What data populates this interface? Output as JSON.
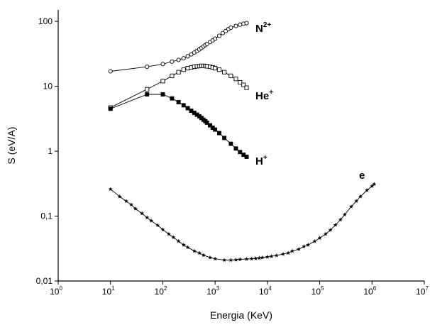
{
  "chart_data": {
    "type": "scatter",
    "xlabel": "Energia (KeV)",
    "ylabel": "S (eV/A)",
    "xscale": "log",
    "yscale": "log",
    "xlim": [
      1,
      10000000
    ],
    "ylim": [
      0.01,
      150
    ],
    "x_ticks": [
      {
        "base": "10",
        "exp": "0",
        "value": 1
      },
      {
        "base": "10",
        "exp": "1",
        "value": 10
      },
      {
        "base": "10",
        "exp": "2",
        "value": 100
      },
      {
        "base": "10",
        "exp": "3",
        "value": 1000
      },
      {
        "base": "10",
        "exp": "4",
        "value": 10000
      },
      {
        "base": "10",
        "exp": "5",
        "value": 100000
      },
      {
        "base": "10",
        "exp": "6",
        "value": 1000000
      },
      {
        "base": "10",
        "exp": "7",
        "value": 10000000
      }
    ],
    "y_ticks": [
      {
        "label": "0,01",
        "value": 0.01
      },
      {
        "label": "0,1",
        "value": 0.1
      },
      {
        "label": "1",
        "value": 1
      },
      {
        "label": "10",
        "value": 10
      },
      {
        "label": "100",
        "value": 100
      }
    ],
    "grid": false,
    "legend": "none",
    "series": [
      {
        "name": "N2+",
        "label_base": "N",
        "label_sup": "2+",
        "marker": "open-circle",
        "x": [
          10,
          50,
          100,
          150,
          200,
          250,
          300,
          350,
          400,
          450,
          500,
          550,
          600,
          650,
          700,
          800,
          900,
          1000,
          1200,
          1400,
          1600,
          1800,
          2000,
          2500,
          3000,
          3500,
          4000
        ],
        "y": [
          17,
          20,
          22,
          24,
          25.5,
          27,
          29,
          31,
          33,
          35,
          37,
          39,
          41,
          43,
          45,
          48,
          51,
          54,
          60,
          66,
          71,
          76,
          80,
          85,
          89,
          92,
          94
        ]
      },
      {
        "name": "He+",
        "label_base": "He",
        "label_sup": "+",
        "marker": "open-square",
        "x": [
          10,
          50,
          100,
          150,
          200,
          250,
          300,
          350,
          400,
          450,
          500,
          550,
          600,
          650,
          700,
          800,
          900,
          1000,
          1200,
          1500,
          2000,
          2500,
          3000,
          3500,
          4000
        ],
        "y": [
          4.7,
          9,
          12,
          14.5,
          16.5,
          18,
          19,
          19.5,
          20,
          20.3,
          20.5,
          20.6,
          20.6,
          20.5,
          20.3,
          20,
          19.5,
          19,
          18,
          16.5,
          14.5,
          13,
          11.5,
          10.5,
          9.5
        ]
      },
      {
        "name": "H+",
        "label_base": "H",
        "label_sup": "+",
        "marker": "filled-square",
        "x": [
          10,
          50,
          100,
          150,
          200,
          250,
          300,
          350,
          400,
          450,
          500,
          550,
          600,
          650,
          700,
          800,
          900,
          1000,
          1200,
          1500,
          2000,
          2500,
          3000,
          3500,
          4000
        ],
        "y": [
          4.5,
          7.5,
          7.5,
          6.5,
          5.7,
          5.1,
          4.6,
          4.2,
          3.9,
          3.65,
          3.45,
          3.25,
          3.05,
          2.9,
          2.75,
          2.5,
          2.3,
          2.15,
          1.9,
          1.6,
          1.3,
          1.1,
          0.97,
          0.88,
          0.82
        ]
      },
      {
        "name": "e",
        "label_base": "e",
        "label_sup": "",
        "marker": "star",
        "x": [
          10,
          15,
          20,
          25,
          30,
          40,
          50,
          60,
          80,
          100,
          130,
          160,
          200,
          250,
          300,
          400,
          500,
          600,
          800,
          1000,
          1500,
          2000,
          2500,
          3000,
          4000,
          5000,
          6000,
          7000,
          8000,
          10000,
          12000,
          15000,
          20000,
          25000,
          30000,
          40000,
          50000,
          60000,
          80000,
          100000,
          130000,
          160000,
          200000,
          250000,
          300000,
          400000,
          500000,
          600000,
          800000,
          1000000,
          1100000
        ],
        "y": [
          0.26,
          0.2,
          0.17,
          0.15,
          0.13,
          0.11,
          0.095,
          0.085,
          0.072,
          0.062,
          0.053,
          0.047,
          0.041,
          0.036,
          0.033,
          0.029,
          0.027,
          0.025,
          0.023,
          0.022,
          0.021,
          0.021,
          0.0212,
          0.0215,
          0.0218,
          0.022,
          0.0223,
          0.0226,
          0.023,
          0.0235,
          0.024,
          0.0248,
          0.026,
          0.027,
          0.029,
          0.031,
          0.034,
          0.036,
          0.041,
          0.046,
          0.053,
          0.061,
          0.073,
          0.088,
          0.105,
          0.14,
          0.17,
          0.2,
          0.25,
          0.29,
          0.31
        ]
      }
    ]
  }
}
